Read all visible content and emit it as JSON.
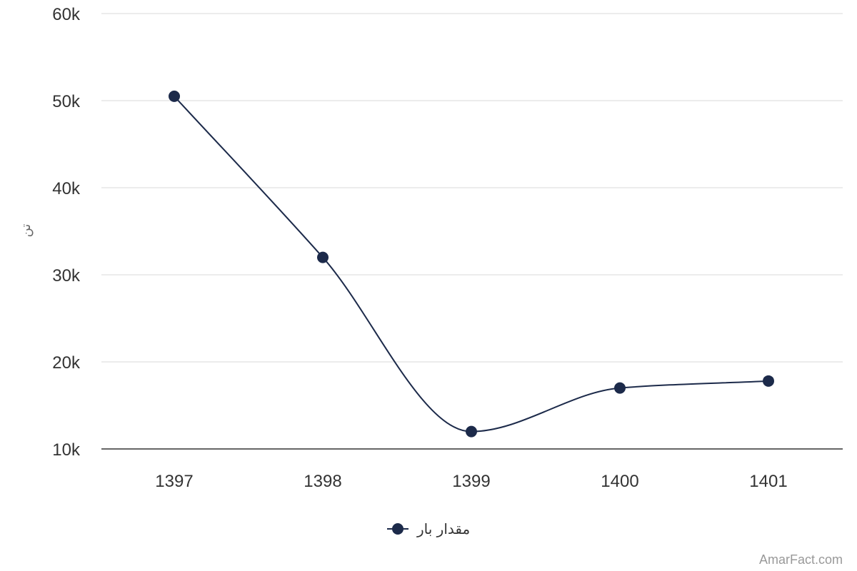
{
  "chart_data": {
    "type": "line",
    "title": "",
    "xlabel": "",
    "ylabel": "تن",
    "categories": [
      "1397",
      "1398",
      "1399",
      "1400",
      "1401"
    ],
    "series": [
      {
        "name": "مقدار بار",
        "values": [
          50500,
          32000,
          12000,
          17000,
          17800
        ]
      }
    ],
    "ylim": [
      10000,
      60000
    ],
    "y_ticks": [
      10000,
      20000,
      30000,
      40000,
      50000,
      60000
    ],
    "y_tick_labels": [
      "10k",
      "20k",
      "30k",
      "40k",
      "50k",
      "60k"
    ],
    "grid": true,
    "legend_position": "bottom-center",
    "line_color": "#1c2a4a",
    "grid_color": "#e6e6e6",
    "axis_color": "#333333"
  },
  "credit": "AmarFact.com"
}
